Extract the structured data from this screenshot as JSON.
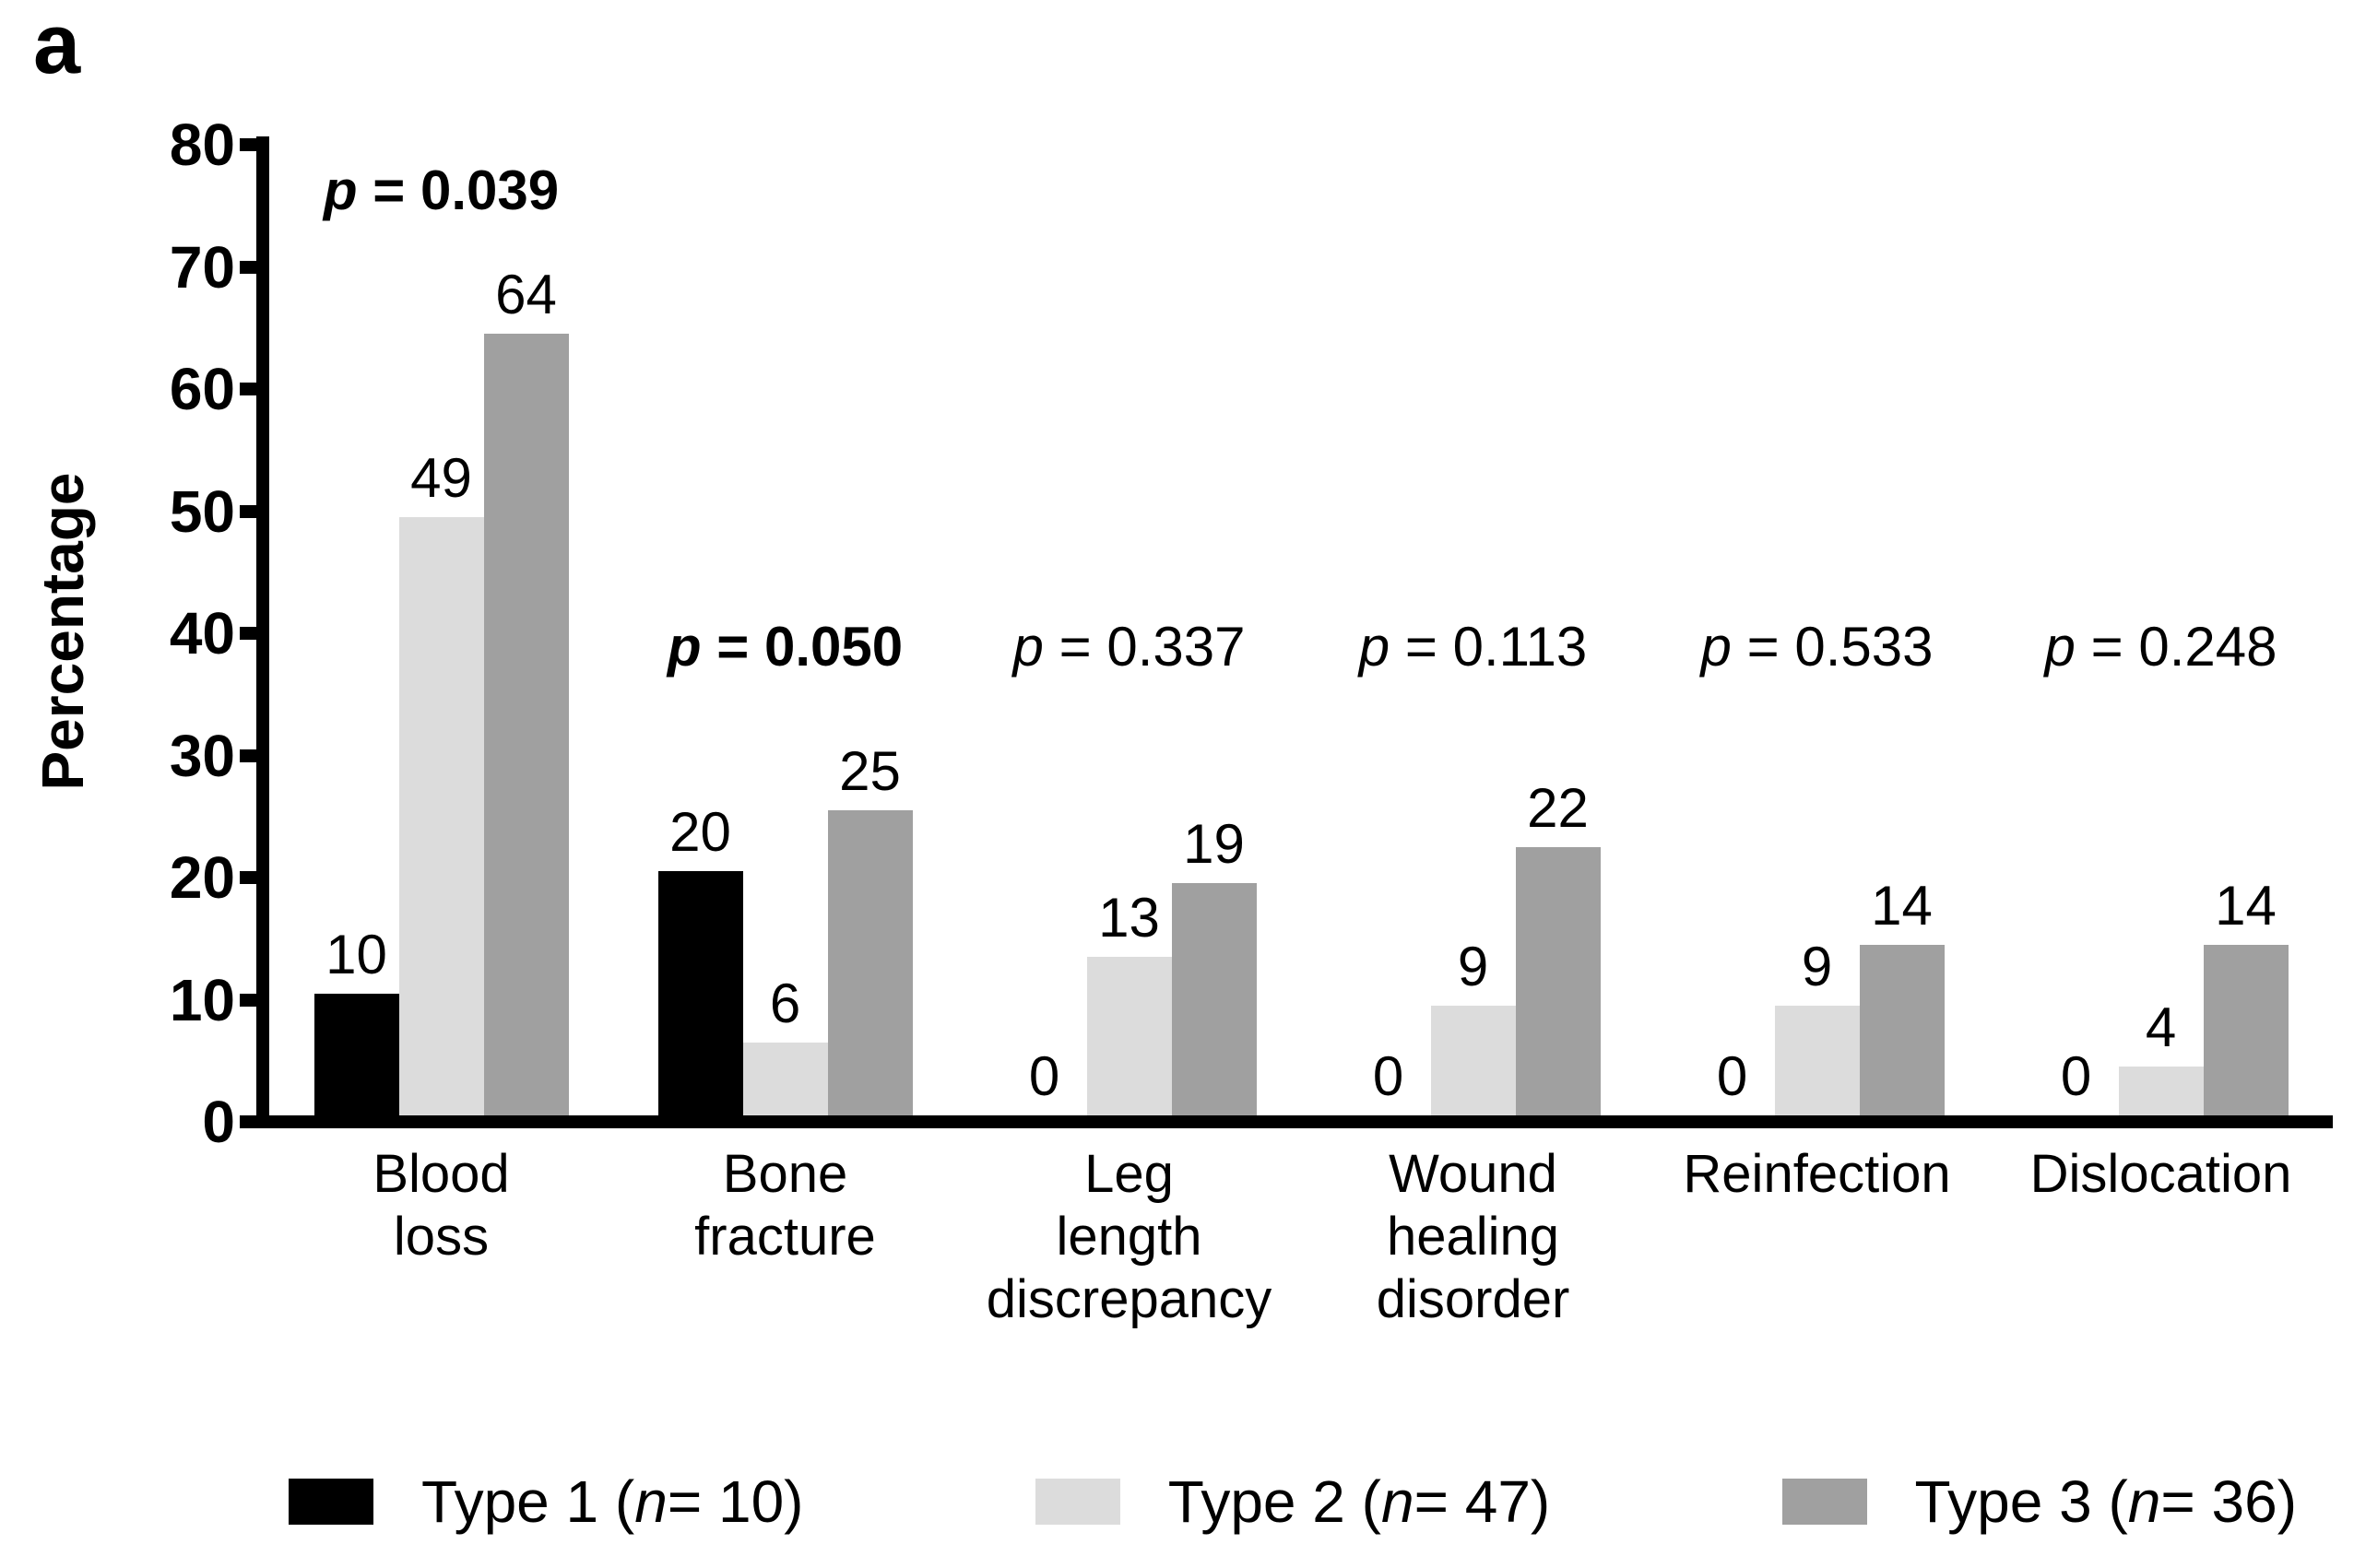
{
  "panel_label": "a",
  "chart_data": {
    "type": "bar",
    "title": "",
    "xlabel": "",
    "ylabel": "Percentage",
    "ylim": [
      0,
      80
    ],
    "y_ticks": [
      0,
      10,
      20,
      30,
      40,
      50,
      60,
      70,
      80
    ],
    "grid": false,
    "legend_position": "bottom",
    "categories": [
      "Blood\nloss",
      "Bone\nfracture",
      "Leg\nlength\ndiscrepancy",
      "Wound\nhealing\ndisorder",
      "Reinfection",
      "Dislocation"
    ],
    "series": [
      {
        "name": "Type 1 (n = 10)",
        "color": "#000000",
        "values": [
          10,
          20,
          0,
          0,
          0,
          0
        ]
      },
      {
        "name": "Type 2 (n = 47)",
        "color": "#DCDCDC",
        "values": [
          49,
          6,
          13,
          9,
          9,
          4
        ]
      },
      {
        "name": "Type 3 (n = 36)",
        "color": "#A0A0A0",
        "values": [
          64,
          25,
          19,
          22,
          14,
          14
        ]
      }
    ],
    "annotations": [
      {
        "italic": "p",
        "text": "= 0.039",
        "bold": true,
        "placement": "high"
      },
      {
        "italic": "p",
        "text": "= 0.050",
        "bold": true,
        "placement": "low"
      },
      {
        "italic": "p",
        "text": "= 0.337",
        "bold": false,
        "placement": "low"
      },
      {
        "italic": "p",
        "text": "= 0.113",
        "bold": false,
        "placement": "low"
      },
      {
        "italic": "p",
        "text": "= 0.533",
        "bold": false,
        "placement": "low"
      },
      {
        "italic": "p",
        "text": "= 0.248",
        "bold": false,
        "placement": "low"
      }
    ]
  },
  "legend": {
    "items": [
      {
        "prefix": "Type 1 (",
        "italic": "n",
        "suffix": " = 10)",
        "color": "#000000"
      },
      {
        "prefix": "Type 2 (",
        "italic": "n",
        "suffix": " = 47)",
        "color": "#DCDCDC"
      },
      {
        "prefix": "Type 3 (",
        "italic": "n",
        "suffix": " = 36)",
        "color": "#A0A0A0"
      }
    ]
  }
}
